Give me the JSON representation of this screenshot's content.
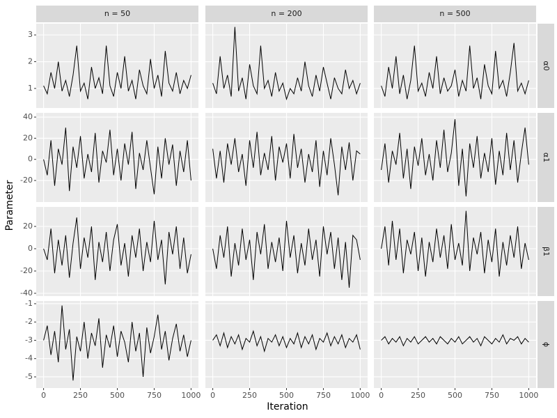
{
  "chart_data": {
    "type": "line",
    "x_label": "Iteration",
    "y_label": "Parameter",
    "color": "#000000",
    "grid": true,
    "columns": [
      "n = 50",
      "n = 200",
      "n = 500"
    ],
    "rows": [
      {
        "label": "α0",
        "ylim": [
          0.27,
          3.42
        ],
        "yticks": [
          1,
          2,
          3
        ]
      },
      {
        "label": "α1",
        "ylim": [
          -40.4,
          44
        ],
        "yticks": [
          -20,
          0,
          20,
          40
        ]
      },
      {
        "label": "β1",
        "ylim": [
          -42.5,
          37.5
        ],
        "yticks": [
          -40,
          -20,
          0,
          20
        ]
      },
      {
        "label": "ϕ",
        "ylim": [
          -5.61,
          -0.85
        ],
        "yticks": [
          -5,
          -4,
          -3,
          -2,
          -1
        ]
      }
    ],
    "x": [
      0,
      25,
      50,
      75,
      100,
      125,
      150,
      175,
      200,
      225,
      250,
      275,
      300,
      325,
      350,
      375,
      400,
      425,
      450,
      475,
      500,
      525,
      550,
      575,
      600,
      625,
      650,
      675,
      700,
      725,
      750,
      775,
      800,
      825,
      850,
      875,
      900,
      925,
      950,
      975,
      1000
    ],
    "xlim": [
      -50,
      1050
    ],
    "xticks": [
      0,
      250,
      500,
      750,
      1000
    ],
    "panels": [
      [
        [
          1.1,
          0.8,
          1.6,
          1.0,
          2.0,
          0.9,
          1.3,
          0.7,
          1.5,
          2.6,
          0.9,
          1.2,
          0.6,
          1.8,
          1.0,
          1.4,
          0.8,
          2.6,
          1.1,
          0.7,
          1.6,
          1.0,
          2.2,
          0.9,
          1.3,
          0.6,
          1.7,
          1.1,
          0.8,
          2.1,
          1.0,
          1.5,
          0.7,
          2.4,
          1.2,
          0.9,
          1.6,
          0.8,
          1.3,
          1.0,
          1.5
        ],
        [
          1.2,
          0.8,
          2.2,
          1.0,
          1.5,
          0.7,
          3.3,
          0.9,
          1.4,
          0.6,
          1.9,
          1.1,
          0.8,
          2.6,
          1.0,
          1.3,
          0.7,
          1.6,
          0.9,
          1.2,
          0.6,
          1.0,
          0.8,
          1.4,
          0.9,
          2.0,
          1.1,
          0.7,
          1.5,
          0.9,
          1.8,
          1.2,
          0.6,
          1.4,
          1.0,
          0.8,
          1.7,
          1.0,
          1.3,
          0.8,
          1.2
        ],
        [
          1.1,
          0.7,
          1.8,
          1.0,
          2.2,
          0.8,
          1.5,
          0.6,
          1.3,
          2.6,
          0.9,
          1.2,
          0.7,
          1.6,
          1.0,
          2.2,
          0.8,
          1.4,
          0.9,
          1.1,
          1.7,
          0.7,
          1.3,
          0.9,
          2.6,
          1.0,
          1.4,
          0.6,
          1.9,
          1.1,
          0.8,
          2.4,
          1.0,
          1.3,
          0.7,
          1.6,
          2.7,
          0.9,
          1.2,
          0.8,
          1.3
        ]
      ],
      [
        [
          0,
          -15,
          18,
          -25,
          10,
          -5,
          30,
          -30,
          12,
          -8,
          22,
          -18,
          5,
          -12,
          25,
          -22,
          8,
          -3,
          28,
          -15,
          10,
          -20,
          15,
          -5,
          26,
          -28,
          6,
          -10,
          18,
          -8,
          -33,
          12,
          -18,
          20,
          -5,
          14,
          -25,
          8,
          -12,
          18,
          -20
        ],
        [
          10,
          -18,
          8,
          -22,
          15,
          -5,
          20,
          -12,
          5,
          -25,
          18,
          -8,
          26,
          -15,
          6,
          -10,
          22,
          -20,
          12,
          -3,
          15,
          -18,
          24,
          -8,
          10,
          -22,
          5,
          -12,
          18,
          -26,
          8,
          -15,
          20,
          -5,
          -34,
          12,
          -10,
          16,
          -20,
          8,
          5
        ],
        [
          -10,
          15,
          -22,
          8,
          -5,
          25,
          -18,
          10,
          -28,
          12,
          -6,
          20,
          -15,
          5,
          -20,
          18,
          -8,
          28,
          -12,
          6,
          38,
          -25,
          10,
          -35,
          15,
          -8,
          22,
          -18,
          6,
          -12,
          20,
          -24,
          8,
          -15,
          25,
          -10,
          18,
          -22,
          6,
          30,
          -5
        ]
      ],
      [
        [
          0,
          -10,
          18,
          -22,
          8,
          -15,
          12,
          -26,
          5,
          28,
          -18,
          10,
          -8,
          20,
          -28,
          6,
          -12,
          15,
          -20,
          8,
          22,
          -15,
          5,
          -25,
          12,
          -8,
          18,
          -20,
          6,
          -12,
          25,
          -10,
          8,
          -32,
          15,
          -5,
          20,
          -18,
          10,
          -22,
          -5
        ],
        [
          0,
          -18,
          12,
          -8,
          20,
          -25,
          5,
          -15,
          18,
          -10,
          8,
          -28,
          15,
          -5,
          22,
          -18,
          6,
          -12,
          10,
          -20,
          25,
          -8,
          12,
          -22,
          5,
          -15,
          18,
          -10,
          8,
          -25,
          20,
          -5,
          15,
          -18,
          10,
          -28,
          6,
          -35,
          12,
          8,
          -10
        ],
        [
          0,
          20,
          -15,
          25,
          -10,
          18,
          -22,
          8,
          -5,
          15,
          -20,
          10,
          -25,
          6,
          -12,
          18,
          -8,
          12,
          -18,
          22,
          -10,
          5,
          -15,
          34,
          -20,
          10,
          -5,
          15,
          -22,
          8,
          -12,
          18,
          -25,
          6,
          -15,
          12,
          -8,
          20,
          -18,
          5,
          -10
        ]
      ],
      [
        [
          -3.0,
          -2.2,
          -3.8,
          -2.5,
          -4.2,
          -1.1,
          -3.5,
          -2.4,
          -5.2,
          -2.8,
          -3.6,
          -2.0,
          -4.0,
          -2.6,
          -3.3,
          -1.8,
          -4.5,
          -2.7,
          -3.4,
          -2.2,
          -3.9,
          -2.5,
          -3.1,
          -4.2,
          -2.0,
          -3.6,
          -2.6,
          -5.0,
          -2.3,
          -3.7,
          -2.8,
          -1.6,
          -3.5,
          -2.5,
          -4.1,
          -2.9,
          -2.1,
          -3.6,
          -2.7,
          -3.9,
          -3.0
        ],
        [
          -3.0,
          -2.7,
          -3.3,
          -2.6,
          -3.4,
          -2.8,
          -3.2,
          -2.7,
          -3.5,
          -2.9,
          -3.1,
          -2.5,
          -3.3,
          -2.8,
          -3.6,
          -2.9,
          -3.1,
          -2.7,
          -3.3,
          -2.8,
          -3.4,
          -2.9,
          -3.2,
          -2.6,
          -3.4,
          -2.8,
          -3.2,
          -2.7,
          -3.5,
          -2.9,
          -3.1,
          -2.6,
          -3.3,
          -2.8,
          -3.2,
          -2.7,
          -3.4,
          -2.9,
          -3.1,
          -2.7,
          -3.5
        ],
        [
          -3.0,
          -2.8,
          -3.2,
          -2.9,
          -3.1,
          -2.8,
          -3.3,
          -2.9,
          -3.1,
          -2.8,
          -3.2,
          -3.0,
          -2.8,
          -3.1,
          -2.9,
          -3.2,
          -2.8,
          -3.0,
          -3.2,
          -2.9,
          -3.1,
          -2.8,
          -3.2,
          -3.0,
          -2.8,
          -3.1,
          -2.9,
          -3.3,
          -2.8,
          -3.0,
          -3.2,
          -2.9,
          -3.1,
          -2.7,
          -3.2,
          -2.9,
          -3.0,
          -2.8,
          -3.2,
          -2.9,
          -3.1
        ]
      ]
    ]
  }
}
